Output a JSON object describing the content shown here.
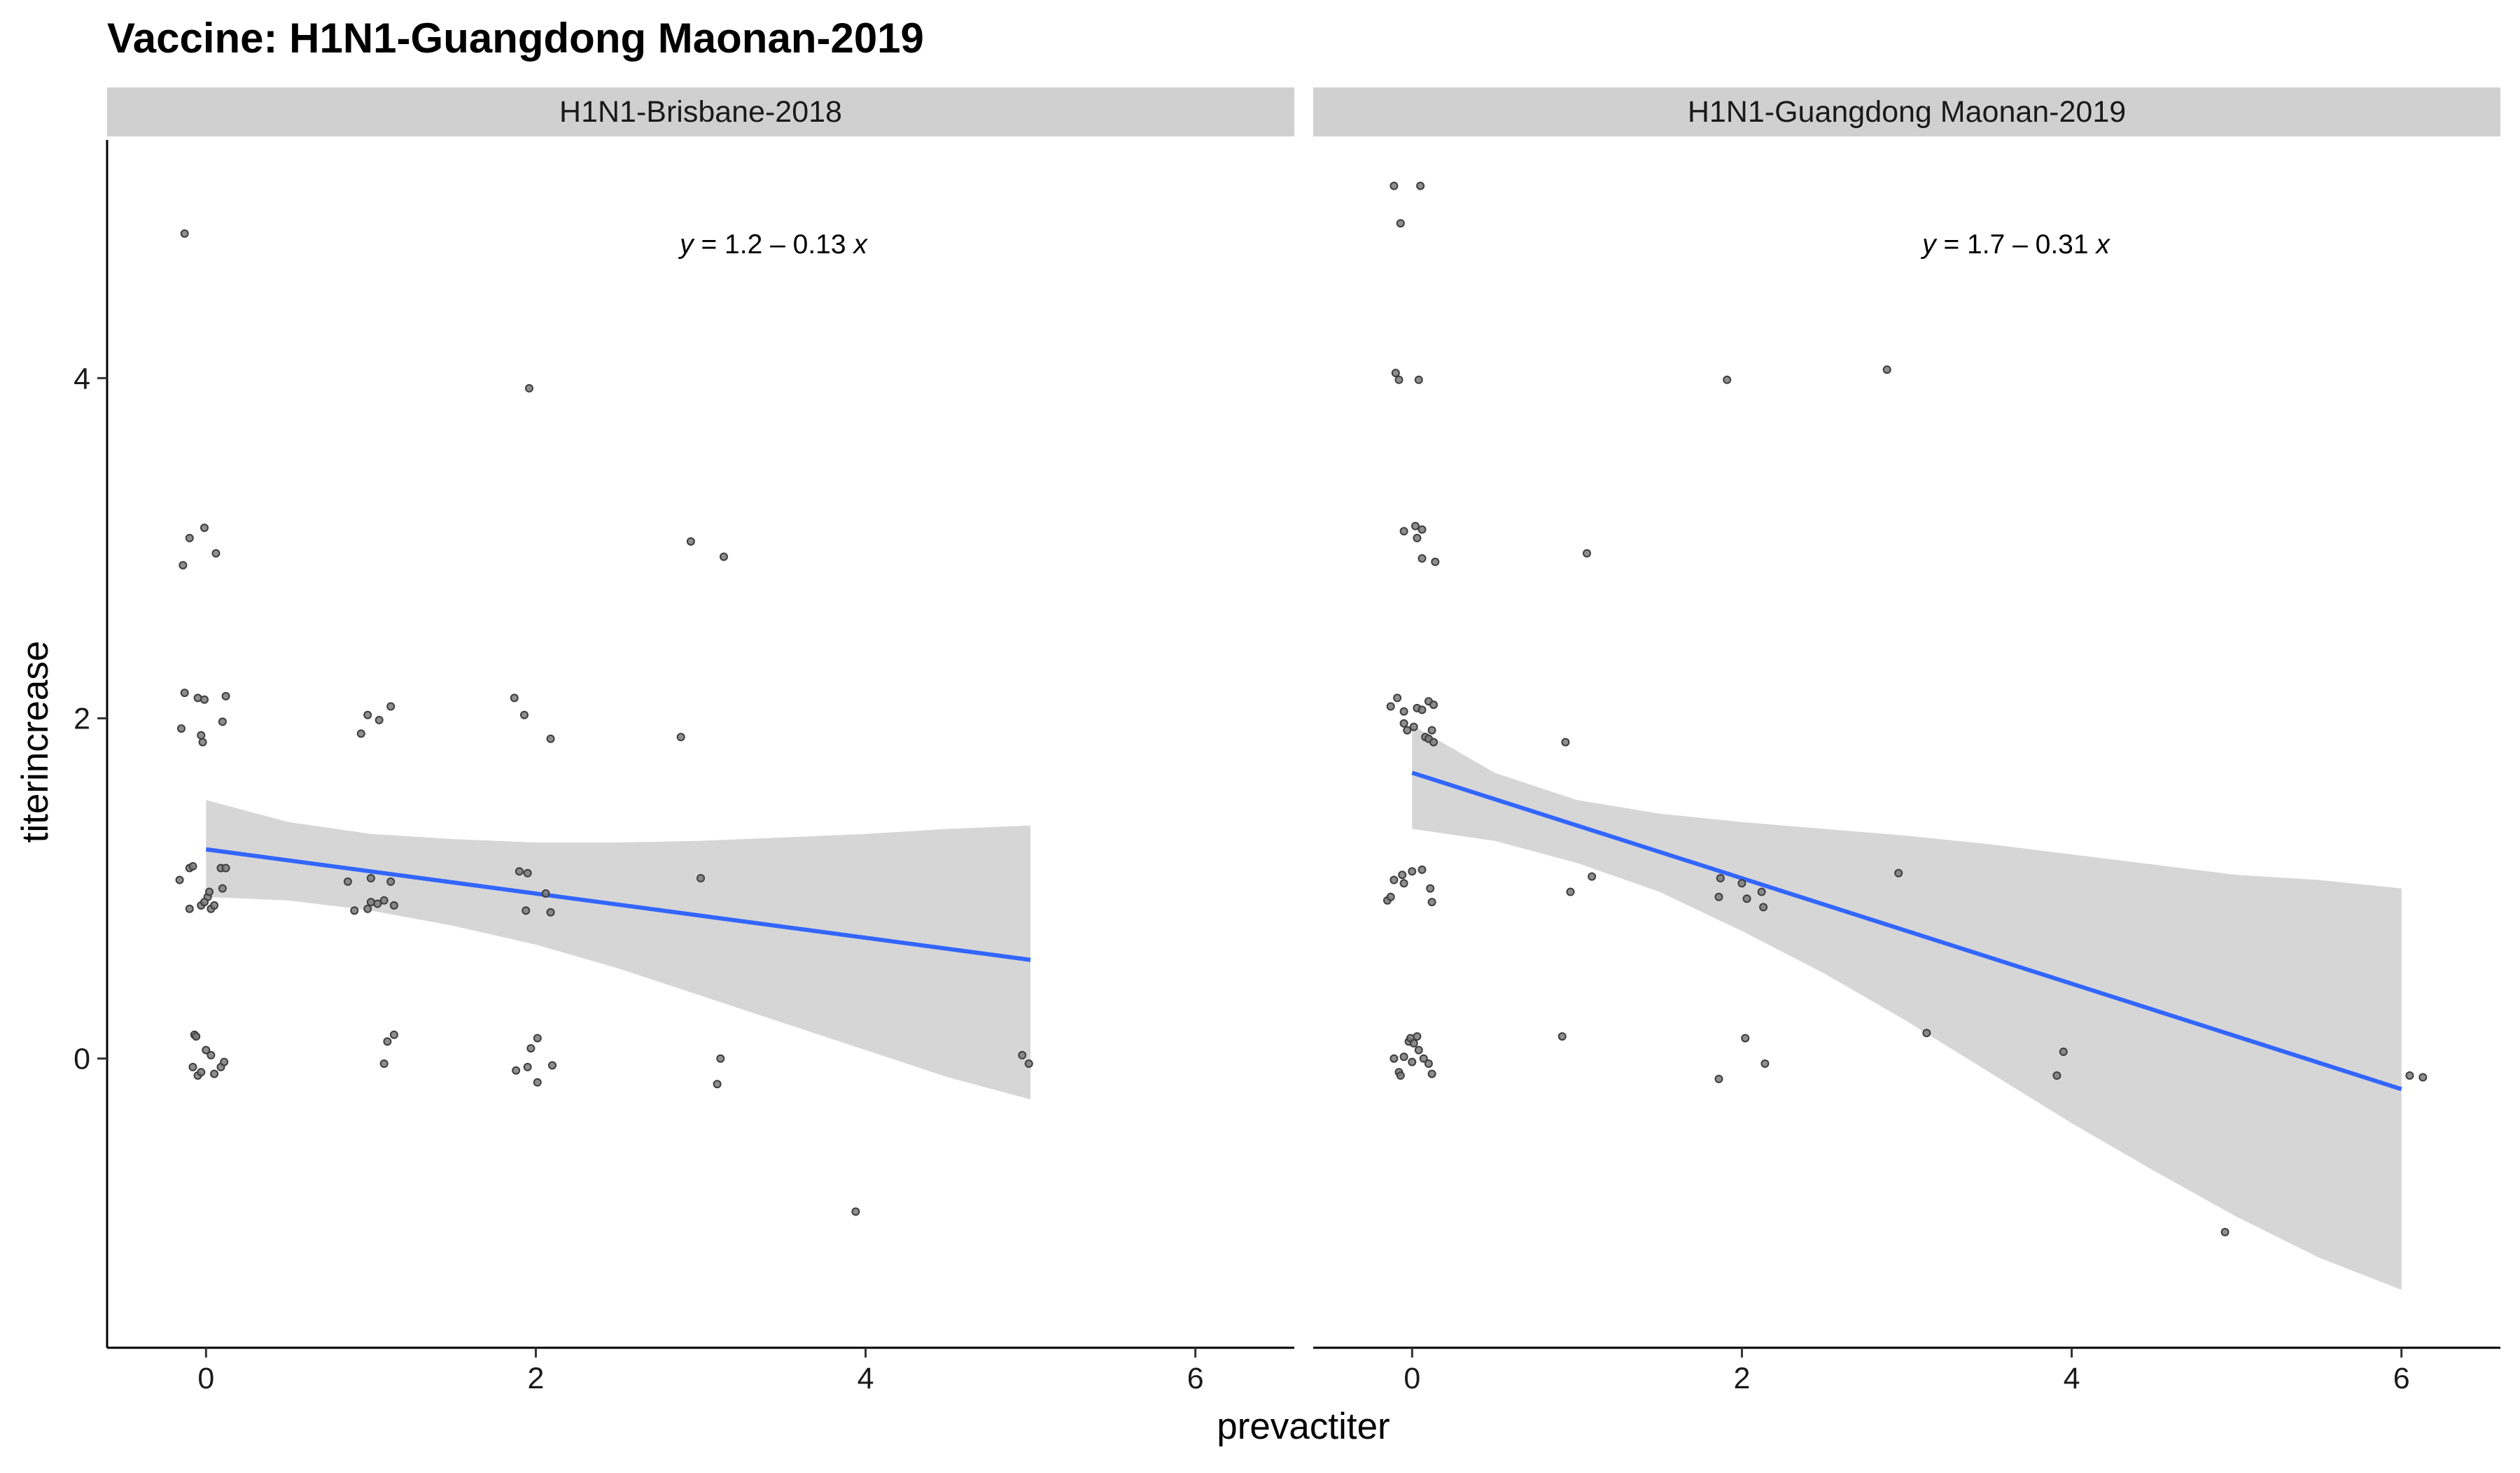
{
  "chart_data": {
    "type": "scatter",
    "title": "Vaccine: H1N1-Guangdong Maonan-2019",
    "xlabel": "prevactiter",
    "ylabel": "titerincrease",
    "xlim": [
      -0.6,
      6.6
    ],
    "ylim": [
      -1.7,
      5.4
    ],
    "x_ticks": [
      0,
      2,
      4,
      6
    ],
    "y_ticks": [
      0,
      2,
      4
    ],
    "x_tick_labels": [
      "0",
      "2",
      "4",
      "6"
    ],
    "y_tick_labels": [
      "0",
      "2",
      "4"
    ],
    "grid": false,
    "legend": "none",
    "colors": {
      "points": "#3d3d3d",
      "line": "#3366FF",
      "ribbon": "#d6d6d6",
      "strip": "#d0d0d0"
    },
    "panels": [
      {
        "strip_label": "H1N1-Brisbane-2018",
        "equation": {
          "prefix": "y",
          "body": " = 1.2 – 0.13 ",
          "suffix": "x"
        },
        "fit": {
          "intercept": 1.23,
          "slope": -0.13,
          "x_range": [
            0,
            5
          ]
        },
        "ribbon": [
          {
            "x": 0,
            "lo": 0.95,
            "hi": 1.52
          },
          {
            "x": 0.5,
            "lo": 0.93,
            "hi": 1.39
          },
          {
            "x": 1,
            "lo": 0.87,
            "hi": 1.32
          },
          {
            "x": 1.5,
            "lo": 0.78,
            "hi": 1.29
          },
          {
            "x": 2,
            "lo": 0.67,
            "hi": 1.27
          },
          {
            "x": 2.5,
            "lo": 0.53,
            "hi": 1.27
          },
          {
            "x": 3,
            "lo": 0.37,
            "hi": 1.28
          },
          {
            "x": 3.5,
            "lo": 0.21,
            "hi": 1.3
          },
          {
            "x": 4,
            "lo": 0.05,
            "hi": 1.32
          },
          {
            "x": 4.5,
            "lo": -0.11,
            "hi": 1.35
          },
          {
            "x": 5,
            "lo": -0.24,
            "hi": 1.37
          }
        ],
        "points": [
          [
            -0.13,
            4.85
          ],
          [
            -0.14,
            2.9
          ],
          [
            -0.1,
            3.06
          ],
          [
            -0.01,
            3.12
          ],
          [
            0.06,
            2.97
          ],
          [
            -0.13,
            2.15
          ],
          [
            -0.05,
            2.12
          ],
          [
            -0.01,
            2.11
          ],
          [
            0.12,
            2.13
          ],
          [
            -0.15,
            1.94
          ],
          [
            -0.03,
            1.9
          ],
          [
            -0.02,
            1.86
          ],
          [
            0.1,
            1.98
          ],
          [
            -0.16,
            1.05
          ],
          [
            -0.1,
            1.12
          ],
          [
            -0.08,
            1.13
          ],
          [
            0.01,
            0.95
          ],
          [
            0.02,
            0.98
          ],
          [
            0.09,
            1.12
          ],
          [
            0.12,
            1.12
          ],
          [
            0.1,
            1.0
          ],
          [
            -0.1,
            0.88
          ],
          [
            -0.03,
            0.9
          ],
          [
            -0.01,
            0.92
          ],
          [
            0.03,
            0.88
          ],
          [
            0.05,
            0.9
          ],
          [
            -0.07,
            0.14
          ],
          [
            -0.06,
            0.13
          ],
          [
            -0.08,
            -0.05
          ],
          [
            -0.05,
            -0.1
          ],
          [
            -0.03,
            -0.08
          ],
          [
            0.0,
            0.05
          ],
          [
            0.03,
            0.02
          ],
          [
            0.05,
            -0.09
          ],
          [
            0.09,
            -0.05
          ],
          [
            0.11,
            -0.02
          ],
          [
            0.94,
            1.91
          ],
          [
            0.98,
            2.02
          ],
          [
            1.05,
            1.99
          ],
          [
            1.12,
            2.07
          ],
          [
            0.86,
            1.04
          ],
          [
            0.9,
            0.87
          ],
          [
            0.98,
            0.88
          ],
          [
            1.0,
            1.06
          ],
          [
            1.04,
            0.91
          ],
          [
            1.08,
            0.93
          ],
          [
            1.12,
            1.04
          ],
          [
            1.14,
            0.9
          ],
          [
            1.0,
            0.92
          ],
          [
            1.1,
            0.1
          ],
          [
            1.14,
            0.14
          ],
          [
            1.08,
            -0.03
          ],
          [
            1.87,
            2.12
          ],
          [
            1.93,
            2.02
          ],
          [
            2.09,
            1.88
          ],
          [
            1.96,
            3.94
          ],
          [
            1.9,
            1.1
          ],
          [
            1.95,
            1.09
          ],
          [
            1.94,
            0.87
          ],
          [
            2.06,
            0.97
          ],
          [
            2.09,
            0.86
          ],
          [
            2.01,
            0.12
          ],
          [
            1.97,
            0.06
          ],
          [
            1.88,
            -0.07
          ],
          [
            1.95,
            -0.05
          ],
          [
            2.01,
            -0.14
          ],
          [
            2.1,
            -0.04
          ],
          [
            2.94,
            3.04
          ],
          [
            3.14,
            2.95
          ],
          [
            2.88,
            1.89
          ],
          [
            3.0,
            1.06
          ],
          [
            3.12,
            0.0
          ],
          [
            3.1,
            -0.15
          ],
          [
            3.94,
            -0.9
          ],
          [
            4.95,
            0.02
          ],
          [
            4.99,
            -0.03
          ]
        ]
      },
      {
        "strip_label": "H1N1-Guangdong Maonan-2019",
        "equation": {
          "prefix": "y",
          "body": " = 1.7 – 0.31 ",
          "suffix": "x"
        },
        "fit": {
          "intercept": 1.68,
          "slope": -0.31,
          "x_range": [
            0,
            6
          ]
        },
        "ribbon": [
          {
            "x": 0,
            "lo": 1.35,
            "hi": 1.96
          },
          {
            "x": 0.5,
            "lo": 1.28,
            "hi": 1.68
          },
          {
            "x": 1,
            "lo": 1.15,
            "hi": 1.52
          },
          {
            "x": 1.5,
            "lo": 0.98,
            "hi": 1.44
          },
          {
            "x": 2,
            "lo": 0.75,
            "hi": 1.39
          },
          {
            "x": 2.5,
            "lo": 0.5,
            "hi": 1.35
          },
          {
            "x": 3,
            "lo": 0.22,
            "hi": 1.31
          },
          {
            "x": 3.5,
            "lo": -0.08,
            "hi": 1.26
          },
          {
            "x": 4,
            "lo": -0.38,
            "hi": 1.2
          },
          {
            "x": 4.5,
            "lo": -0.66,
            "hi": 1.14
          },
          {
            "x": 5,
            "lo": -0.93,
            "hi": 1.08
          },
          {
            "x": 5.5,
            "lo": -1.17,
            "hi": 1.05
          },
          {
            "x": 6,
            "lo": -1.36,
            "hi": 1.0
          }
        ],
        "points": [
          [
            -0.11,
            5.13
          ],
          [
            0.05,
            5.13
          ],
          [
            -0.07,
            4.91
          ],
          [
            -0.1,
            4.03
          ],
          [
            -0.08,
            3.99
          ],
          [
            0.04,
            3.99
          ],
          [
            -0.05,
            3.1
          ],
          [
            0.02,
            3.13
          ],
          [
            0.06,
            3.11
          ],
          [
            0.03,
            3.06
          ],
          [
            0.06,
            2.94
          ],
          [
            0.14,
            2.92
          ],
          [
            -0.13,
            2.07
          ],
          [
            -0.09,
            2.12
          ],
          [
            -0.05,
            2.04
          ],
          [
            -0.03,
            1.93
          ],
          [
            -0.05,
            1.97
          ],
          [
            0.01,
            1.95
          ],
          [
            0.03,
            2.06
          ],
          [
            0.06,
            2.05
          ],
          [
            0.1,
            2.1
          ],
          [
            0.13,
            2.08
          ],
          [
            0.08,
            1.89
          ],
          [
            0.1,
            1.88
          ],
          [
            0.12,
            1.93
          ],
          [
            0.13,
            1.86
          ],
          [
            -0.15,
            0.93
          ],
          [
            -0.13,
            0.95
          ],
          [
            -0.11,
            1.05
          ],
          [
            -0.06,
            1.08
          ],
          [
            0.0,
            1.1
          ],
          [
            0.06,
            1.11
          ],
          [
            0.11,
            1.0
          ],
          [
            0.12,
            0.92
          ],
          [
            -0.05,
            1.03
          ],
          [
            -0.11,
            0.0
          ],
          [
            -0.08,
            -0.08
          ],
          [
            -0.05,
            0.01
          ],
          [
            -0.02,
            0.1
          ],
          [
            -0.01,
            0.12
          ],
          [
            0.01,
            0.09
          ],
          [
            0.03,
            0.13
          ],
          [
            0.04,
            0.05
          ],
          [
            0.07,
            0.0
          ],
          [
            0.1,
            -0.03
          ],
          [
            0.12,
            -0.09
          ],
          [
            0.0,
            -0.02
          ],
          [
            -0.07,
            -0.1
          ],
          [
            0.93,
            1.86
          ],
          [
            1.06,
            2.97
          ],
          [
            0.96,
            0.98
          ],
          [
            1.09,
            1.07
          ],
          [
            0.91,
            0.13
          ],
          [
            1.91,
            3.99
          ],
          [
            2.88,
            4.05
          ],
          [
            1.87,
            1.06
          ],
          [
            2.0,
            1.03
          ],
          [
            2.12,
            0.98
          ],
          [
            1.86,
            0.95
          ],
          [
            2.03,
            0.94
          ],
          [
            2.13,
            0.89
          ],
          [
            2.02,
            0.12
          ],
          [
            2.14,
            -0.03
          ],
          [
            1.86,
            -0.12
          ],
          [
            2.95,
            1.09
          ],
          [
            3.12,
            0.15
          ],
          [
            3.95,
            0.04
          ],
          [
            3.91,
            -0.1
          ],
          [
            4.93,
            -1.02
          ],
          [
            6.05,
            -0.1
          ],
          [
            6.13,
            -0.11
          ]
        ]
      }
    ]
  }
}
